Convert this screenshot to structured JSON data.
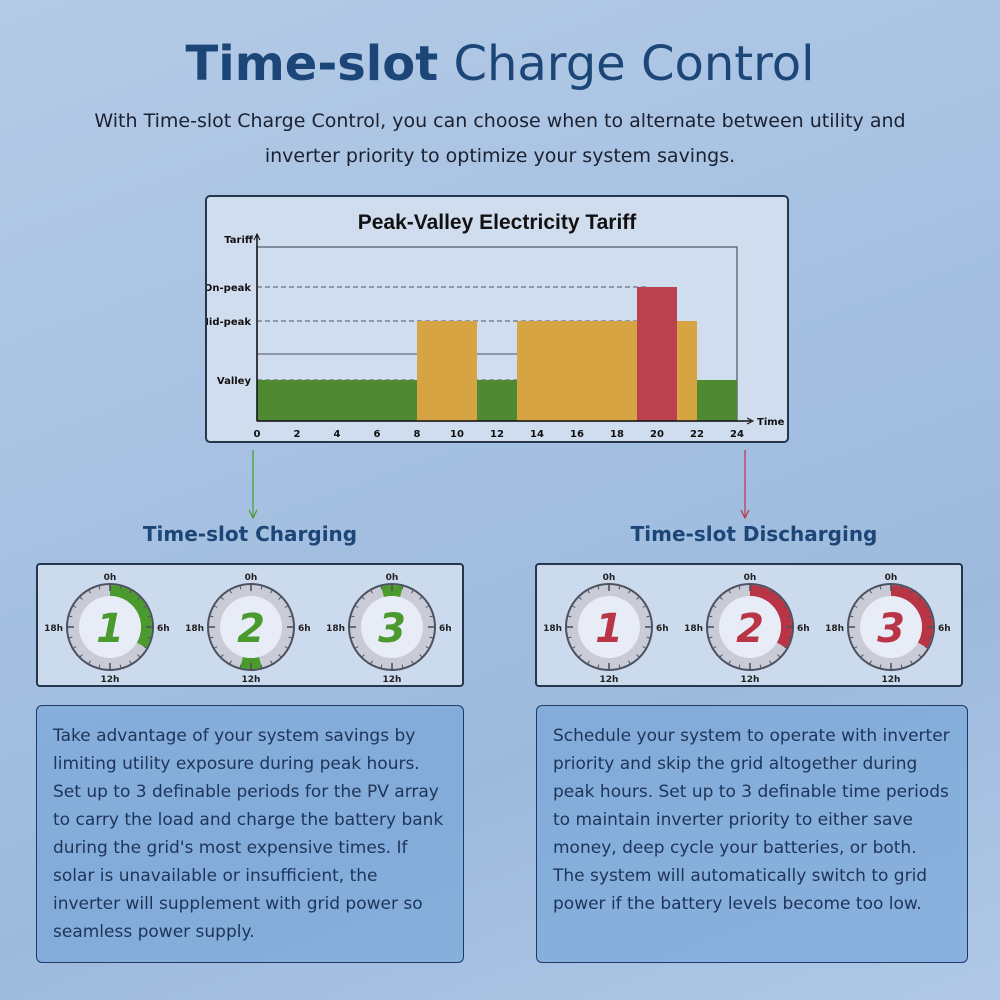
{
  "header": {
    "title_bold": "Time-slot",
    "title_rest": " Charge Control",
    "subtitle": "With Time-slot Charge Control, you can choose when to alternate between utility and inverter priority to optimize your system savings."
  },
  "chart_data": {
    "type": "bar",
    "title": "Peak-Valley Electricity Tariff",
    "xlabel": "Time",
    "ylabel": "Tariff",
    "xlim": [
      0,
      24
    ],
    "xticks": [
      0,
      2,
      4,
      6,
      8,
      10,
      12,
      14,
      16,
      18,
      20,
      22,
      24
    ],
    "yticks": [
      "Valley",
      "Mid-peak",
      "On-peak"
    ],
    "segments": [
      {
        "start": 0,
        "end": 8,
        "level": "Valley"
      },
      {
        "start": 8,
        "end": 11,
        "level": "Mid-peak"
      },
      {
        "start": 11,
        "end": 13,
        "level": "Valley"
      },
      {
        "start": 13,
        "end": 19,
        "level": "Mid-peak"
      },
      {
        "start": 19,
        "end": 21,
        "level": "On-peak"
      },
      {
        "start": 21,
        "end": 22,
        "level": "Mid-peak"
      },
      {
        "start": 22,
        "end": 24,
        "level": "Valley"
      }
    ],
    "colors": {
      "Valley": "#4f8a33",
      "Mid-peak": "#d6a443",
      "On-peak": "#b94150"
    }
  },
  "charging": {
    "heading": "Time-slot Charging",
    "color": "#4a9a2e",
    "clocks": [
      {
        "label": "1",
        "start": 0,
        "end": 8
      },
      {
        "label": "2",
        "start": 11,
        "end": 13
      },
      {
        "label": "3",
        "start": 23,
        "end": 1
      }
    ],
    "text": "Take advantage of your system savings by limiting utility exposure during peak hours. Set up to 3 definable periods for the PV array to carry the load and charge the battery bank during the grid's most expensive times. If solar is unavailable or insufficient, the inverter will supplement with grid power so seamless power supply."
  },
  "discharging": {
    "heading": "Time-slot Discharging",
    "color": "#b93545",
    "clocks": [
      {
        "label": "1",
        "start": null,
        "end": null
      },
      {
        "label": "2",
        "start": 0,
        "end": 8
      },
      {
        "label": "3",
        "start": 0,
        "end": 8
      }
    ],
    "text": "Schedule your system to operate with inverter priority and skip the grid altogether during peak hours. Set up to 3 definable time periods to maintain inverter priority to either save money, deep cycle your batteries, or both. The system will automatically switch to grid power if the battery levels become too low."
  },
  "clock_labels": {
    "top": "0h",
    "right": "6h",
    "bottom": "12h",
    "left": "18h"
  }
}
